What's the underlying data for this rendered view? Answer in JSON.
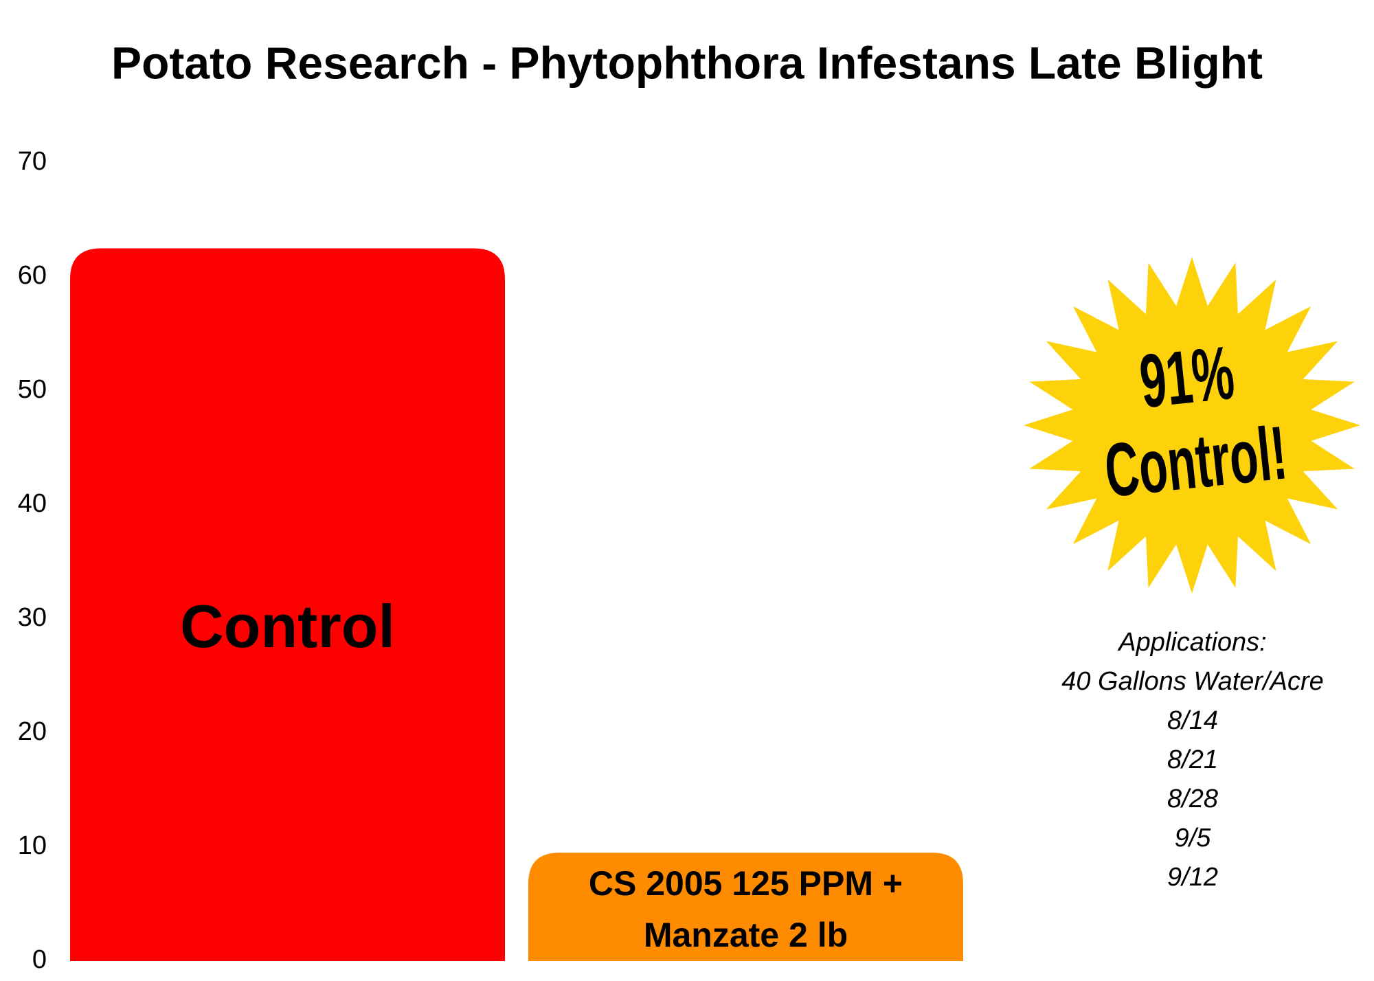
{
  "chart_data": {
    "type": "bar",
    "title": "Potato Research - Phytophthora Infestans Late Blight",
    "categories": [
      "Control",
      "CS 2005 125 PPM + Manzate 2 lb"
    ],
    "values": [
      62.5,
      9.5
    ],
    "colors": [
      "#ff0000",
      "#ff8c00"
    ],
    "ylim": [
      0,
      70
    ],
    "yticks": [
      0,
      10,
      20,
      30,
      40,
      50,
      60,
      70
    ],
    "grid": false,
    "annotations": {
      "starburst": [
        "91%",
        "Control!"
      ],
      "applications": [
        "Applications:",
        "40 Gallons Water/Acre",
        "8/14",
        "8/21",
        "8/28",
        "9/5",
        "9/12"
      ]
    }
  }
}
